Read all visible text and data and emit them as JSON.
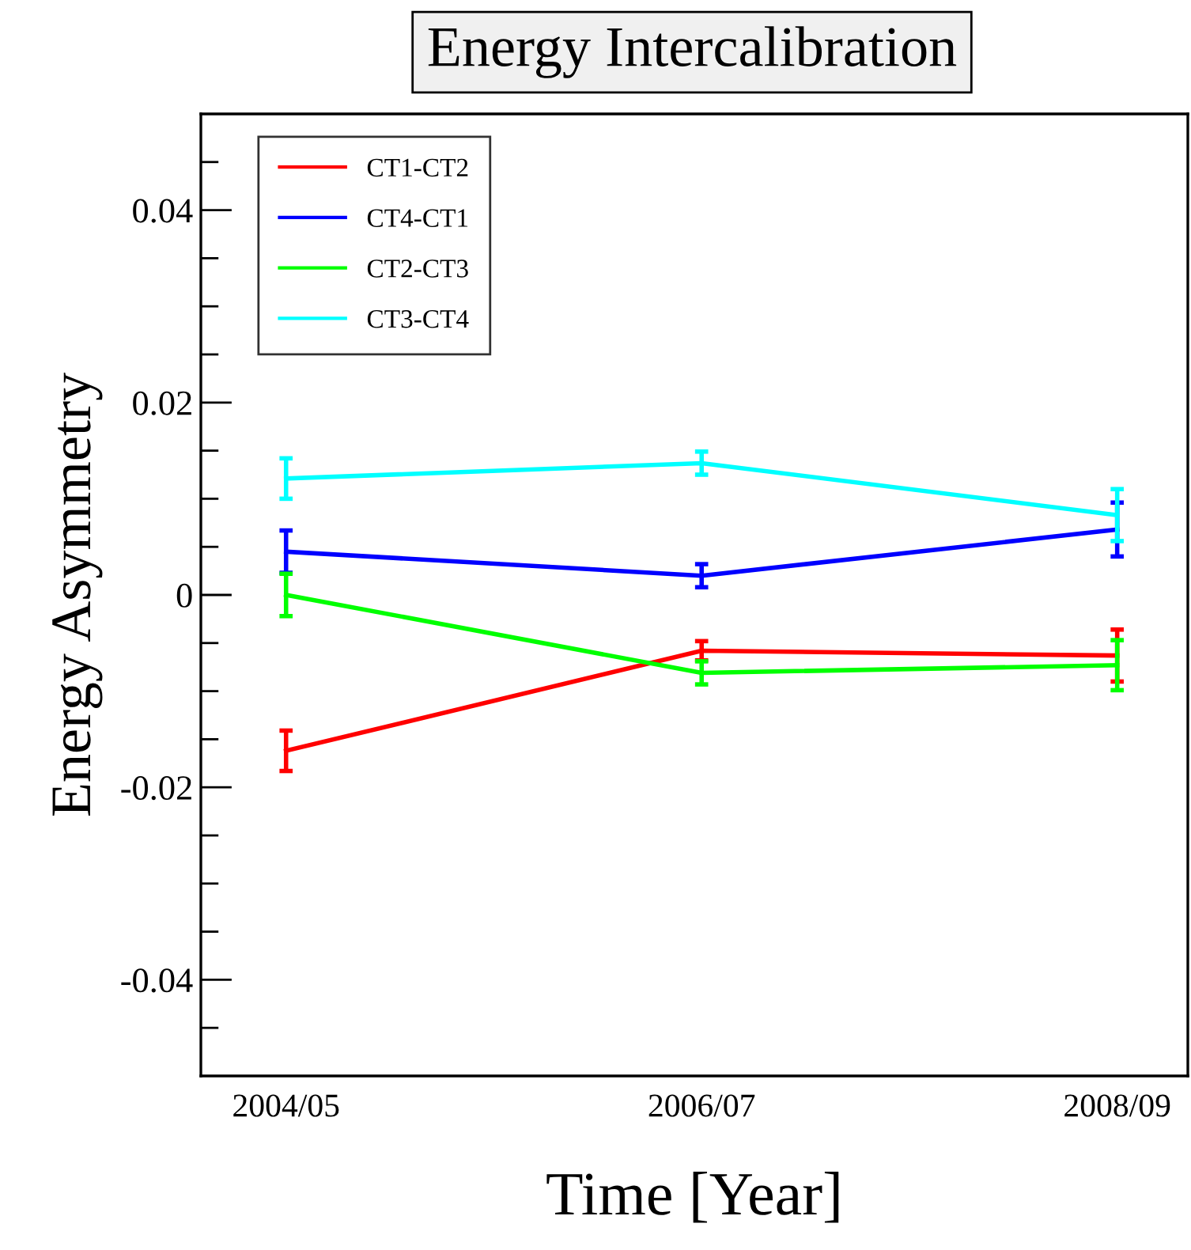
{
  "chart_data": {
    "type": "line",
    "title": "Energy Intercalibration",
    "xlabel": "Time [Year]",
    "ylabel": "Energy Asymmetry",
    "categories": [
      "2004/05",
      "2006/07",
      "2008/09"
    ],
    "ylim": [
      -0.05,
      0.05
    ],
    "yticks": [
      {
        "value": -0.045,
        "label": null
      },
      -0.04,
      {
        "value": -0.035,
        "label": null
      },
      {
        "value": -0.03,
        "label": null
      },
      {
        "value": -0.025,
        "label": null
      },
      -0.02,
      {
        "value": -0.015,
        "label": null
      },
      {
        "value": -0.01,
        "label": null
      },
      {
        "value": -0.005,
        "label": null
      },
      0,
      {
        "value": 0.005,
        "label": null
      },
      {
        "value": 0.01,
        "label": null
      },
      {
        "value": 0.015,
        "label": null
      },
      0.02,
      {
        "value": 0.025,
        "label": null
      },
      {
        "value": 0.03,
        "label": null
      },
      {
        "value": 0.035,
        "label": null
      },
      0.04,
      {
        "value": 0.045,
        "label": null
      }
    ],
    "legend": "top left",
    "grid": false,
    "marker": "none",
    "line_style": "solid",
    "series": [
      {
        "name": "CT1-CT2",
        "color": "#ff0000",
        "values": [
          -0.0162,
          -0.0058,
          -0.0063
        ],
        "errors": [
          0.0021,
          0.001,
          0.0027
        ]
      },
      {
        "name": "CT4-CT1",
        "color": "#0000ff",
        "values": [
          0.0045,
          0.002,
          0.0068
        ],
        "errors": [
          0.0022,
          0.0012,
          0.0028
        ]
      },
      {
        "name": "CT2-CT3",
        "color": "#00ff00",
        "values": [
          0.0,
          -0.0081,
          -0.0073
        ],
        "errors": [
          0.0022,
          0.0012,
          0.0026
        ]
      },
      {
        "name": "CT3-CT4",
        "color": "#00ffff",
        "values": [
          0.0121,
          0.0137,
          0.0083
        ],
        "errors": [
          0.0021,
          0.0012,
          0.0027
        ]
      }
    ]
  }
}
